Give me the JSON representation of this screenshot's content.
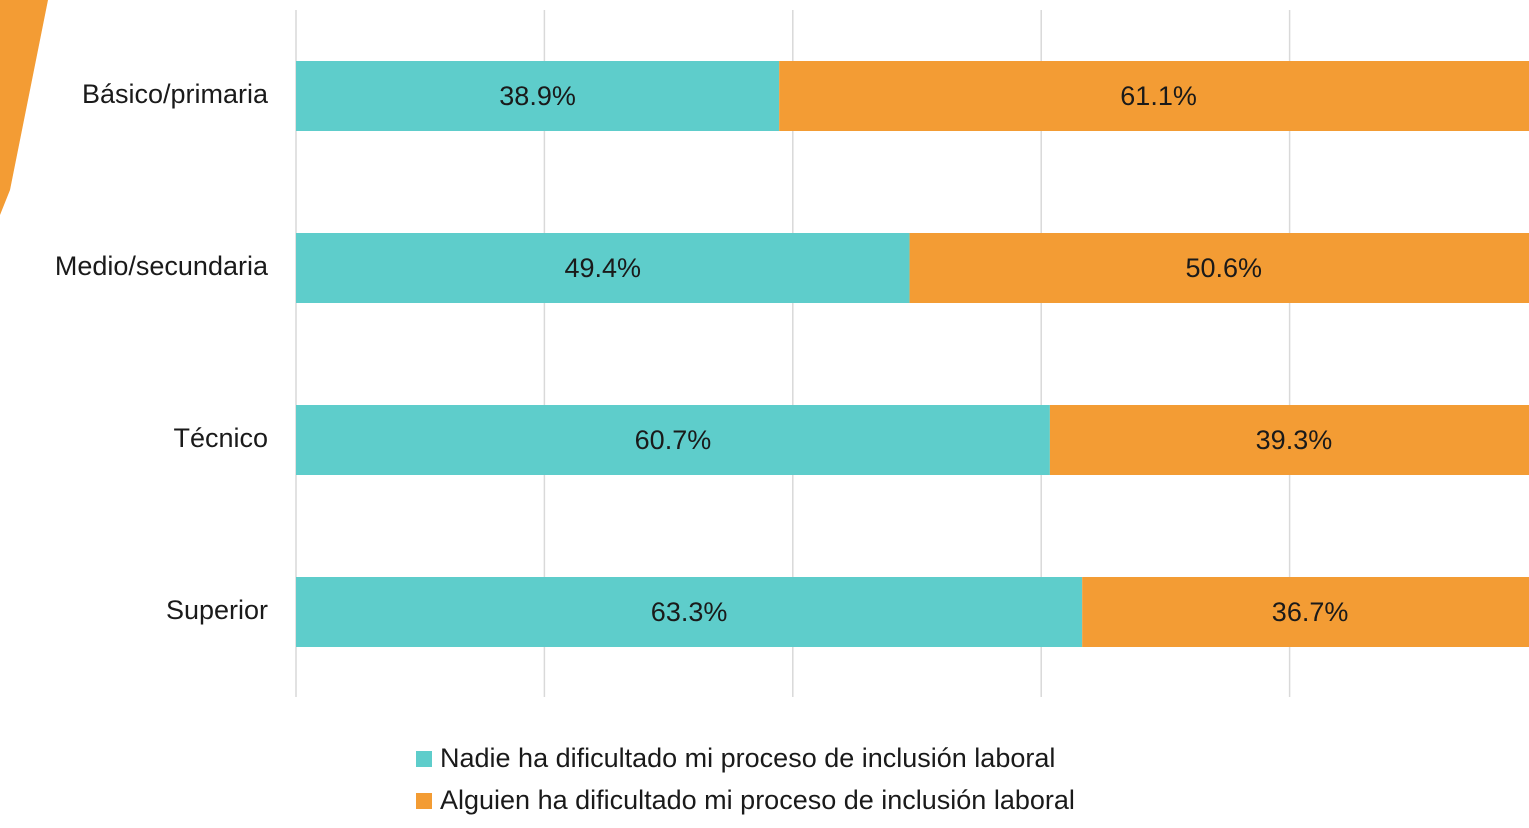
{
  "chart_data": {
    "type": "stacked_bar_horizontal",
    "categories": [
      "Básico/primaria",
      "Medio/secundaria",
      "Técnico",
      "Superior"
    ],
    "series": [
      {
        "name": "Nadie ha dificultado mi proceso de inclusión laboral",
        "color": "#5ecdcb",
        "values": [
          38.9,
          49.4,
          60.7,
          63.3
        ],
        "value_labels": [
          "38.9%",
          "49.4%",
          "60.7%",
          "63.3%"
        ]
      },
      {
        "name": "Alguien ha dificultado mi proceso de inclusión laboral",
        "color": "#f39c34",
        "values": [
          61.1,
          50.6,
          39.3,
          36.7
        ],
        "value_labels": [
          "61.1%",
          "50.6%",
          "39.3%",
          "36.7%"
        ]
      }
    ],
    "xlim": [
      0,
      100
    ],
    "xticks": [
      0,
      20,
      40,
      60,
      80,
      100
    ],
    "grid": true
  }
}
